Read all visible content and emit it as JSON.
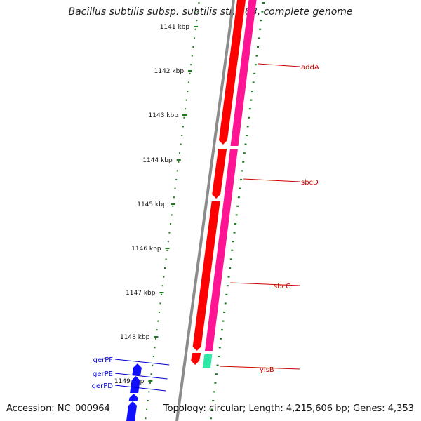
{
  "title": "Bacillus subtilis subsp. subtilis str. 168, complete genome",
  "accession": "Accession: NC_000964",
  "summary": "Topology: circular; Length: 4,215,606 bp; Genes: 4,353",
  "ticks": [
    "1141 kbp",
    "1142 kbp",
    "1143 kbp",
    "1144 kbp",
    "1145 kbp",
    "1146 kbp",
    "1147 kbp",
    "1148 kbp",
    "1149 kbp"
  ],
  "features": {
    "reverse": [
      {
        "label": "addA",
        "color": "#ff1493"
      },
      {
        "label": "sbcD",
        "color": "#ff1493"
      },
      {
        "label": "sbcC",
        "color": "#ff1493"
      },
      {
        "label": "yisB",
        "color": "#2ee8a6"
      }
    ],
    "forward": [
      {
        "label": "gerPF",
        "color": "#1010ff"
      },
      {
        "label": "gerPE",
        "color": "#1010ff"
      },
      {
        "label": "gerPD",
        "color": "#1010ff"
      }
    ]
  },
  "colors": {
    "backbone": "#8c8c8c",
    "forward_strand": "#ff0000",
    "reverse_strand": "#ff1493",
    "tick_marks": "#1e7a1e",
    "reverse_labels": "#cc0000",
    "forward_labels": "#0000cc"
  }
}
